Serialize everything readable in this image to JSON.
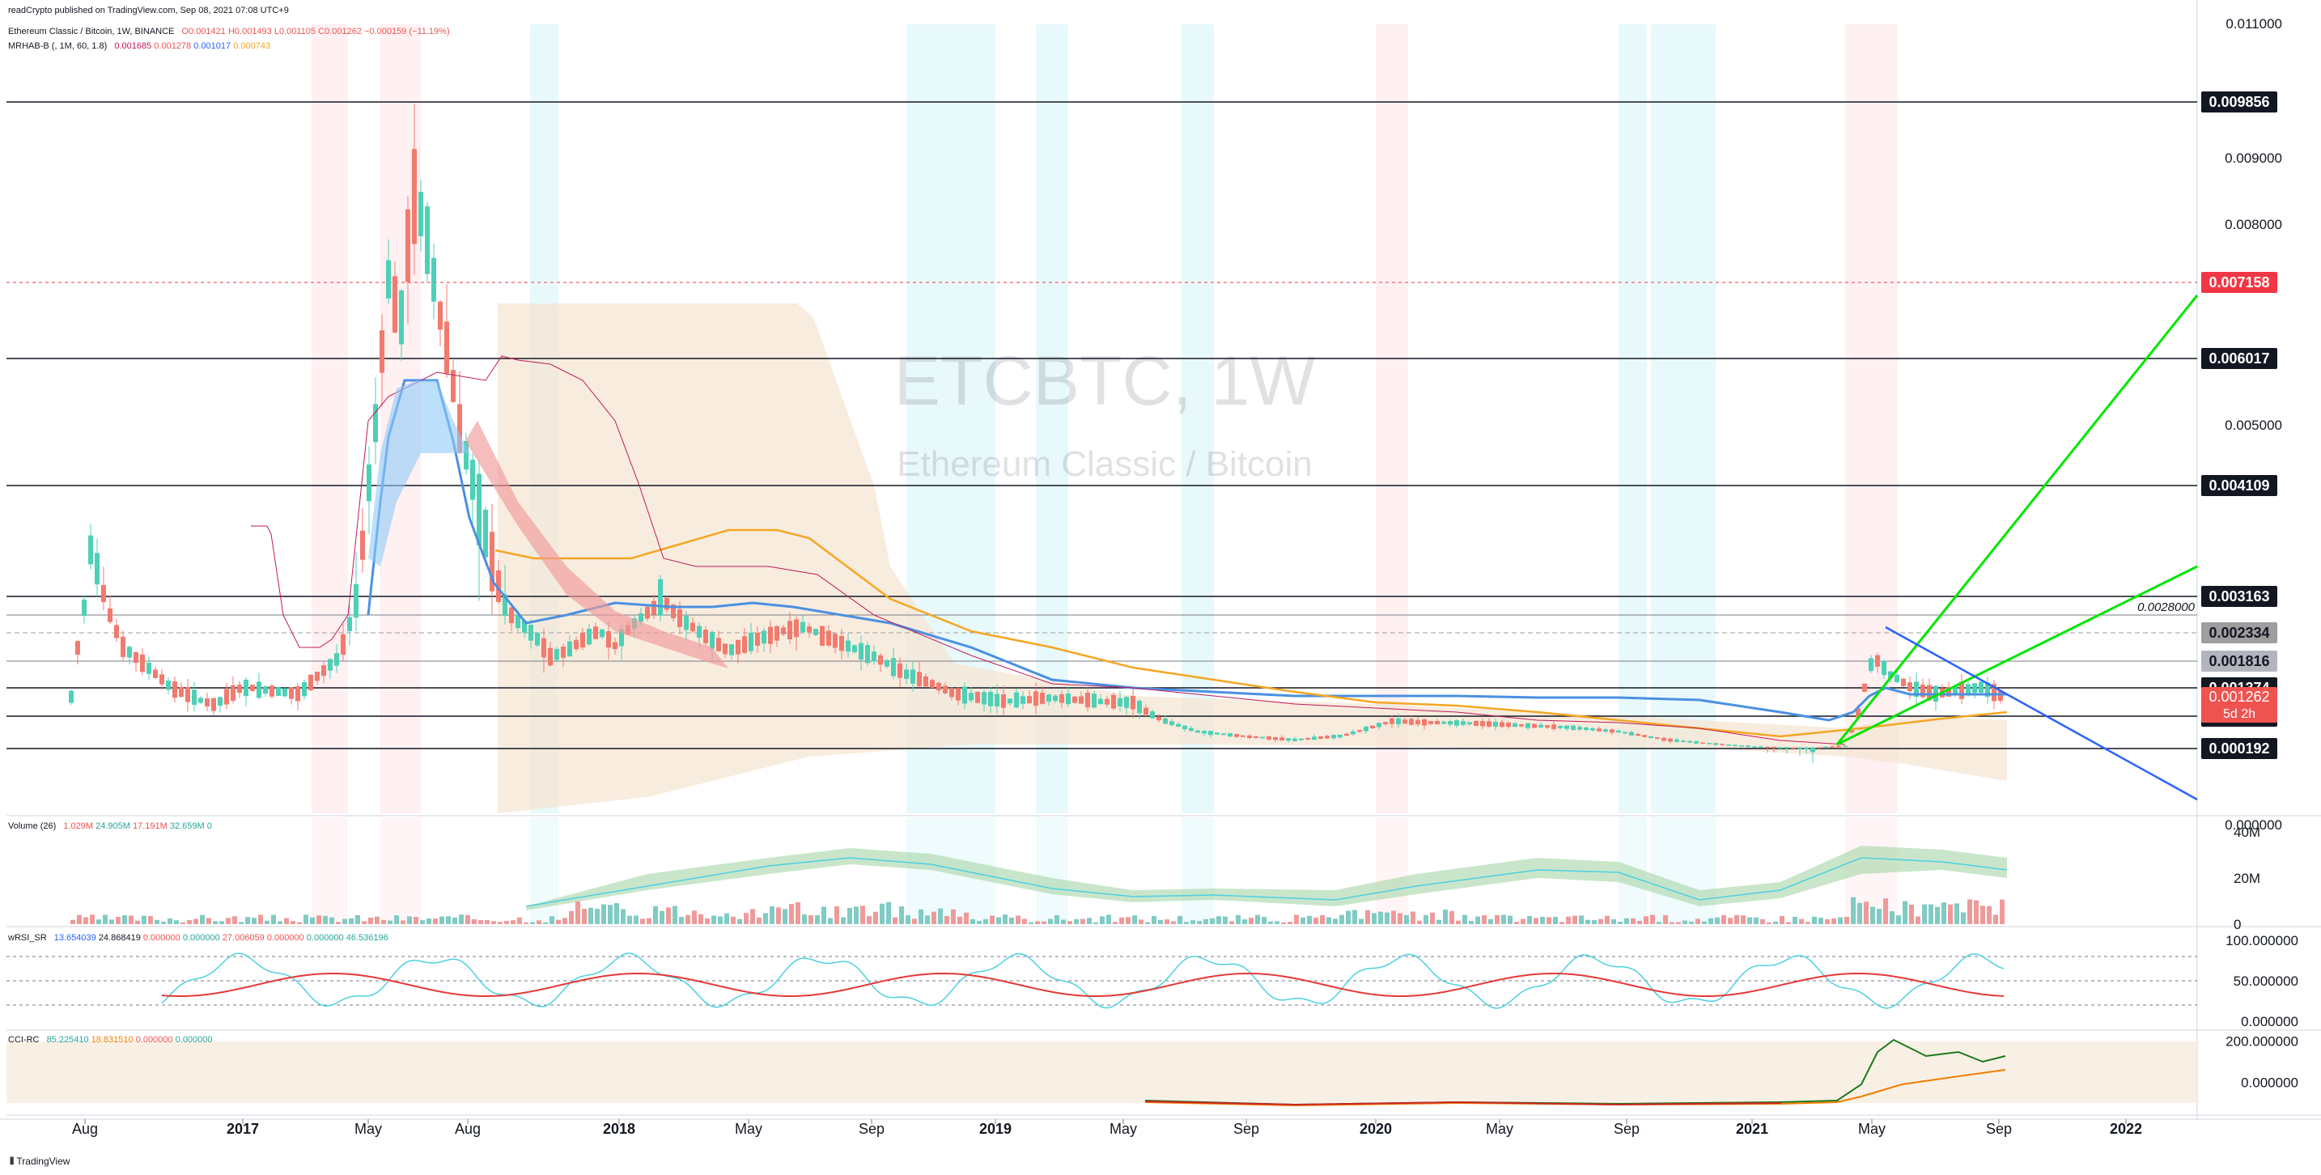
{
  "header": {
    "publisher": "readCrypto published on TradingView.com, Sep 08, 2021 07:08 UTC+9",
    "symbol_line": "Ethereum Classic / Bitcoin, 1W, BINANCE",
    "ohlc": [
      "O0.001421",
      "H0.001493",
      "L0.001105",
      "C0.001262",
      "−0.000159 (−11.19%)"
    ],
    "ind1_label": "MRHAB-B (, 1M, 60, 1.8)",
    "ind1_values": [
      "0.001685",
      "0.001278",
      "0.001017",
      "0.000743"
    ]
  },
  "watermark": {
    "symbol": "ETCBTC, 1W",
    "name": "Ethereum Classic / Bitcoin"
  },
  "footer": {
    "logo": "TradingView"
  },
  "colors": {
    "up": "#26a69a",
    "down": "#ef5350",
    "blue": "#2962ff",
    "orange": "#f5a623",
    "green": "#00e600",
    "fill": "#f5e6d3",
    "accent_red": "#f23645"
  },
  "chart_data": [
    {
      "type": "candlestick",
      "title": "ETCBTC, 1W",
      "subtitle": "Ethereum Classic / Bitcoin",
      "x_tick_labels": [
        "Aug",
        "2017",
        "May",
        "Aug",
        "2018",
        "May",
        "Sep",
        "2019",
        "May",
        "Sep",
        "2020",
        "May",
        "Sep",
        "2021",
        "May",
        "Sep",
        "2022"
      ],
      "y_tick_labels": [
        "0.011000",
        "0.009000",
        "0.008000",
        "0.005000",
        "0.000000"
      ],
      "ylim": [
        0,
        0.011
      ],
      "price_levels": [
        {
          "label": "0.009856",
          "value": 0.009856,
          "style": "solid"
        },
        {
          "label": "0.007158",
          "value": 0.007158,
          "style": "dashed-red"
        },
        {
          "label": "0.006017",
          "value": 0.006017,
          "style": "solid"
        },
        {
          "label": "0.004109",
          "value": 0.004109,
          "style": "solid"
        },
        {
          "label": "0.003163",
          "value": 0.003163,
          "style": "solid"
        },
        {
          "label": "0.002334",
          "value": 0.002334,
          "style": "dashed-gray"
        },
        {
          "label": "0.001816",
          "value": 0.001816,
          "style": "solid-gray"
        },
        {
          "label": "0.001374",
          "value": 0.001374,
          "style": "solid"
        },
        {
          "label": "0.000970",
          "value": 0.00097,
          "style": "solid"
        },
        {
          "label": "0.000192",
          "value": 0.000192,
          "style": "solid"
        }
      ],
      "current_price": {
        "label": "0.001262",
        "value": 0.001262,
        "countdown": "5d 2h"
      },
      "annotation": {
        "label": "0.0028000",
        "value": 0.0028
      }
    },
    {
      "type": "bar",
      "name": "Volume (26)",
      "legend_values": [
        "1.029M",
        "24.905M",
        "17.191M",
        "32.659M",
        "0"
      ],
      "y_tick_labels": [
        "40M",
        "20M",
        "0"
      ],
      "ylim": [
        0,
        40
      ]
    },
    {
      "type": "line",
      "name": "wRSI_SR",
      "legend_values": [
        "13.654039",
        "24.868419",
        "0.000000",
        "0.000000",
        "27.006059",
        "0.000000",
        "0.000000",
        "46.536196"
      ],
      "y_tick_labels": [
        "100.000000",
        "50.000000",
        "0.000000"
      ],
      "ylim": [
        0,
        100
      ]
    },
    {
      "type": "line",
      "name": "CCI-RC",
      "legend_values": [
        "85.225410",
        "18.831510",
        "0.000000",
        "0.000000"
      ],
      "y_tick_labels": [
        "200.000000",
        "0.000000"
      ],
      "ylim": [
        -100,
        250
      ]
    }
  ]
}
